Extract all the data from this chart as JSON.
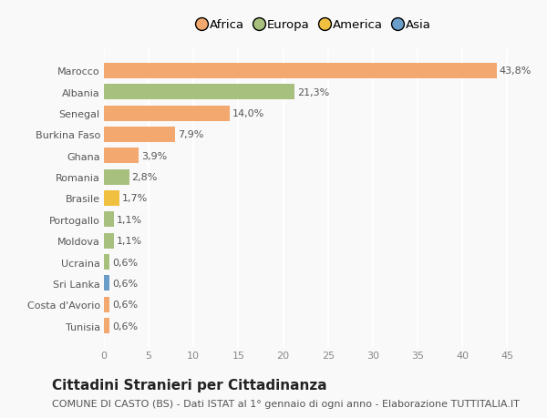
{
  "categories": [
    "Tunisia",
    "Costa d'Avorio",
    "Sri Lanka",
    "Ucraina",
    "Moldova",
    "Portogallo",
    "Brasile",
    "Romania",
    "Ghana",
    "Burkina Faso",
    "Senegal",
    "Albania",
    "Marocco"
  ],
  "values": [
    0.6,
    0.6,
    0.6,
    0.6,
    1.1,
    1.1,
    1.7,
    2.8,
    3.9,
    7.9,
    14.0,
    21.3,
    43.8
  ],
  "labels": [
    "0,6%",
    "0,6%",
    "0,6%",
    "0,6%",
    "1,1%",
    "1,1%",
    "1,7%",
    "2,8%",
    "3,9%",
    "7,9%",
    "14,0%",
    "21,3%",
    "43,8%"
  ],
  "colors": [
    "#f2a86f",
    "#f2a86f",
    "#6b9dc9",
    "#a8c07e",
    "#a8c07e",
    "#a8c07e",
    "#f0c040",
    "#a8c07e",
    "#f2a86f",
    "#f2a86f",
    "#f2a86f",
    "#a8c07e",
    "#f2a86f"
  ],
  "legend_labels": [
    "Africa",
    "Europa",
    "America",
    "Asia"
  ],
  "legend_colors": [
    "#f2a86f",
    "#a8c07e",
    "#f0c040",
    "#6b9dc9"
  ],
  "title": "Cittadini Stranieri per Cittadinanza",
  "subtitle": "COMUNE DI CASTO (BS) - Dati ISTAT al 1° gennaio di ogni anno - Elaborazione TUTTITALIA.IT",
  "xlim": [
    0,
    47
  ],
  "xticks": [
    0,
    5,
    10,
    15,
    20,
    25,
    30,
    35,
    40,
    45
  ],
  "background_color": "#f9f9f9",
  "bar_height": 0.72,
  "title_fontsize": 11,
  "subtitle_fontsize": 8,
  "label_fontsize": 8,
  "tick_fontsize": 8,
  "legend_fontsize": 9.5
}
